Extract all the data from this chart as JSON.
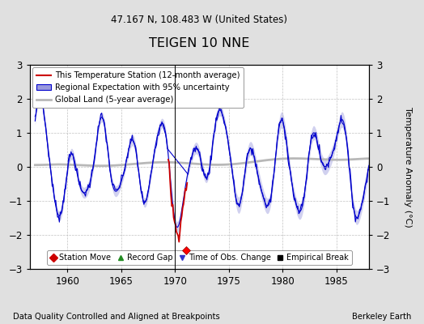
{
  "title": "TEIGEN 10 NNE",
  "subtitle": "47.167 N, 108.483 W (United States)",
  "xlim": [
    1956.5,
    1988.0
  ],
  "ylim": [
    -3,
    3
  ],
  "yticks": [
    -3,
    -2,
    -1,
    0,
    1,
    2,
    3
  ],
  "xticks": [
    1960,
    1965,
    1970,
    1975,
    1980,
    1985
  ],
  "ylabel": "Temperature Anomaly (°C)",
  "footer_left": "Data Quality Controlled and Aligned at Breakpoints",
  "footer_right": "Berkeley Earth",
  "bg_color": "#e0e0e0",
  "plot_bg_color": "#ffffff",
  "legend_items": [
    "This Temperature Station (12-month average)",
    "Regional Expectation with 95% uncertainty",
    "Global Land (5-year average)"
  ],
  "station_move_year": 1971.0,
  "station_move_val": -2.45,
  "red_start": 1969.3,
  "red_end": 1971.2,
  "vline_year": 1970.0
}
